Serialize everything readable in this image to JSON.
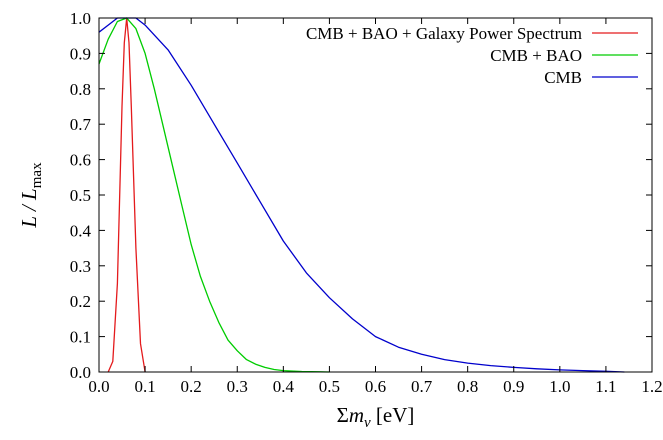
{
  "chart_data": {
    "type": "line",
    "title": "",
    "xlabel": {
      "prefix": "Σ",
      "main": "m",
      "sub": "ν",
      "suffix": " [eV]"
    },
    "ylabel": {
      "main": "L / L",
      "sub": "max"
    },
    "xlim": [
      0.0,
      1.2
    ],
    "ylim": [
      0.0,
      1.0
    ],
    "xticks": [
      0.0,
      0.1,
      0.2,
      0.3,
      0.4,
      0.5,
      0.6,
      0.7,
      0.8,
      0.9,
      1.0,
      1.1,
      1.2
    ],
    "xtick_labels": [
      "0.0",
      "0.1",
      "0.2",
      "0.3",
      "0.4",
      "0.5",
      "0.6",
      "0.7",
      "0.8",
      "0.9",
      "1.0",
      "1.1",
      "1.2"
    ],
    "yticks": [
      0.0,
      0.1,
      0.2,
      0.3,
      0.4,
      0.5,
      0.6,
      0.7,
      0.8,
      0.9,
      1.0
    ],
    "ytick_labels": [
      "0.0",
      "0.1",
      "0.2",
      "0.3",
      "0.4",
      "0.5",
      "0.6",
      "0.7",
      "0.8",
      "0.9",
      "1.0"
    ],
    "grid": false,
    "legend_position": "top-right",
    "series": [
      {
        "name": "CMB + BAO + Galaxy Power Spectrum",
        "color": "#e41a1c",
        "x": [
          0.02,
          0.03,
          0.04,
          0.05,
          0.055,
          0.06,
          0.065,
          0.07,
          0.08,
          0.09,
          0.1
        ],
        "y": [
          0.0,
          0.03,
          0.25,
          0.75,
          0.93,
          1.0,
          0.93,
          0.75,
          0.35,
          0.08,
          0.0
        ]
      },
      {
        "name": "CMB + BAO",
        "color": "#00cc00",
        "x": [
          0.0,
          0.02,
          0.04,
          0.06,
          0.08,
          0.1,
          0.12,
          0.14,
          0.16,
          0.18,
          0.2,
          0.22,
          0.24,
          0.26,
          0.28,
          0.3,
          0.32,
          0.34,
          0.36,
          0.38,
          0.4,
          0.44,
          0.48,
          0.5
        ],
        "y": [
          0.87,
          0.94,
          0.99,
          1.0,
          0.97,
          0.9,
          0.8,
          0.69,
          0.58,
          0.47,
          0.36,
          0.27,
          0.2,
          0.14,
          0.09,
          0.06,
          0.035,
          0.022,
          0.013,
          0.007,
          0.004,
          0.0015,
          0.0005,
          0.0
        ]
      },
      {
        "name": "CMB",
        "color": "#0000cc",
        "x": [
          0.0,
          0.02,
          0.04,
          0.06,
          0.08,
          0.1,
          0.15,
          0.2,
          0.25,
          0.3,
          0.35,
          0.4,
          0.45,
          0.5,
          0.55,
          0.6,
          0.65,
          0.7,
          0.75,
          0.8,
          0.85,
          0.9,
          0.95,
          1.0,
          1.05,
          1.1,
          1.14
        ],
        "y": [
          0.96,
          0.98,
          1.0,
          1.0,
          1.0,
          0.98,
          0.91,
          0.81,
          0.7,
          0.59,
          0.48,
          0.37,
          0.28,
          0.21,
          0.15,
          0.1,
          0.07,
          0.05,
          0.035,
          0.025,
          0.018,
          0.013,
          0.009,
          0.006,
          0.004,
          0.002,
          0.0
        ]
      }
    ]
  }
}
